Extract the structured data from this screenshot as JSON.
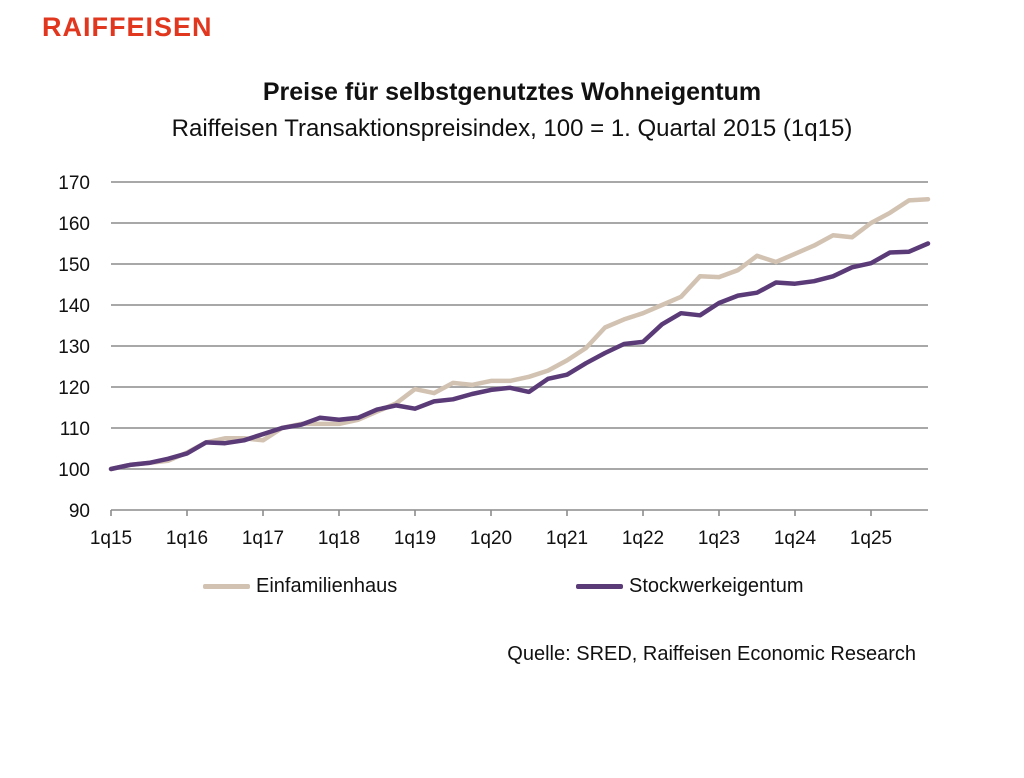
{
  "brand": {
    "name": "RAIFFEISEN",
    "color": "#e2371f"
  },
  "chart_data": {
    "type": "line",
    "title": "Preise für selbstgenutztes Wohneigentum",
    "subtitle": "Raiffeisen Transaktionspreisindex, 100 = 1. Quartal 2015 (1q15)",
    "xlabel": "",
    "ylabel": "",
    "ylim": [
      90,
      170
    ],
    "yticks": [
      90,
      100,
      110,
      120,
      130,
      140,
      150,
      160,
      170
    ],
    "xtick_labels": [
      "1q15",
      "1q16",
      "1q17",
      "1q18",
      "1q19",
      "1q20",
      "1q21",
      "1q22",
      "1q23",
      "1q24",
      "1q25"
    ],
    "x": [
      "1q15",
      "2q15",
      "3q15",
      "4q15",
      "1q16",
      "2q16",
      "3q16",
      "4q16",
      "1q17",
      "2q17",
      "3q17",
      "4q17",
      "1q18",
      "2q18",
      "3q18",
      "4q18",
      "1q19",
      "2q19",
      "3q19",
      "4q19",
      "1q20",
      "2q20",
      "3q20",
      "4q20",
      "1q21",
      "2q21",
      "3q21",
      "4q21",
      "1q22",
      "2q22",
      "3q22",
      "4q22",
      "1q23",
      "2q23",
      "3q23",
      "4q23",
      "1q24",
      "2q24",
      "3q24",
      "4q24",
      "1q25",
      "2q25",
      "3q25",
      "4q25"
    ],
    "grid": true,
    "legend_position": "bottom",
    "series": [
      {
        "name": "Einfamilienhaus",
        "color": "#d2c2b2",
        "values": [
          100,
          101,
          101.5,
          102,
          104,
          106.5,
          107.5,
          107.5,
          107,
          110,
          111,
          111,
          111,
          112,
          114,
          116,
          119.5,
          118.5,
          121,
          120.5,
          121.5,
          121.5,
          122.5,
          124,
          126.5,
          129.5,
          134.5,
          136.5,
          138,
          140,
          142,
          147,
          146.8,
          148.5,
          152,
          150.5,
          152.5,
          154.5,
          157,
          156.5,
          160,
          162.5,
          165.5,
          165.8
        ]
      },
      {
        "name": "Stockwerkeigentum",
        "color": "#5b3a78",
        "values": [
          100,
          101,
          101.5,
          102.5,
          103.8,
          106.5,
          106.3,
          107,
          108.5,
          110,
          110.8,
          112.5,
          112,
          112.5,
          114.5,
          115.5,
          114.7,
          116.5,
          117,
          118.3,
          119.3,
          119.8,
          118.8,
          122,
          123,
          125.8,
          128.3,
          130.5,
          131,
          135.3,
          138,
          137.5,
          140.5,
          142.3,
          143,
          145.5,
          145.2,
          145.8,
          147,
          149.2,
          150.2,
          152.8,
          153,
          155
        ]
      }
    ]
  },
  "source": "Quelle: SRED, Raiffeisen Economic Research"
}
